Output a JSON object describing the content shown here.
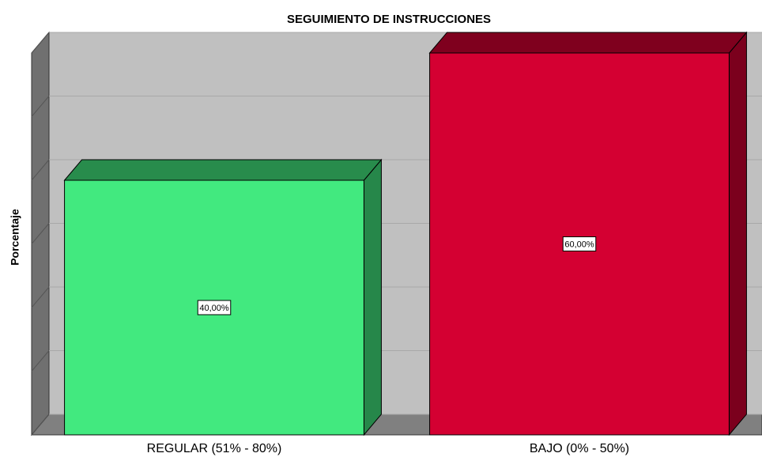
{
  "chart_data": {
    "type": "bar",
    "title": "SEGUIMIENTO DE INSTRUCCIONES",
    "y_label": "Porcentaje",
    "categories": [
      "REGULAR (51% - 80%)",
      "BAJO (0% - 50%)"
    ],
    "values": [
      40,
      60
    ],
    "value_labels": [
      "40,00%",
      "60,00%"
    ],
    "colors": [
      "#42e97f",
      "#d40032"
    ],
    "ylim": [
      0,
      60
    ],
    "yticks": [
      0,
      10,
      20,
      30,
      40,
      50,
      60
    ],
    "grid": true
  }
}
